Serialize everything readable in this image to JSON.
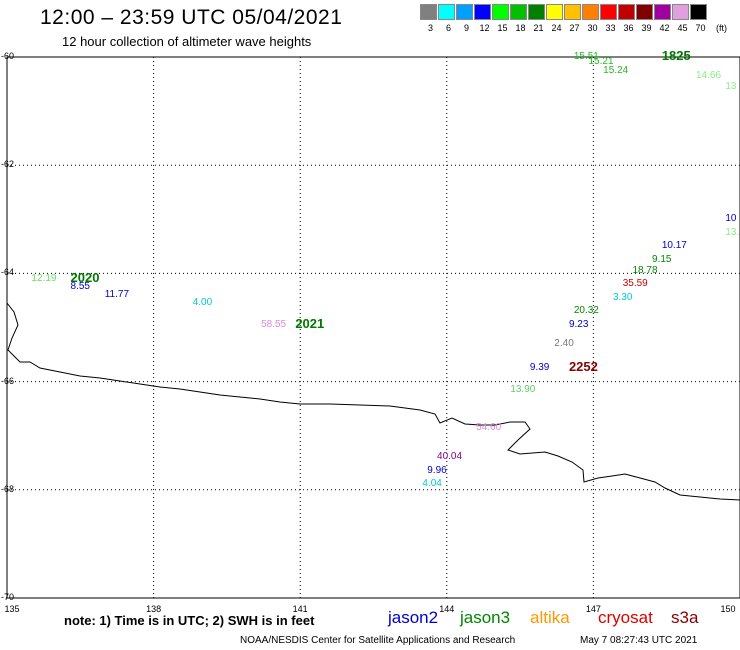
{
  "title": "12:00 – 23:59 UTC 05/04/2021",
  "subtitle": "12 hour collection of altimeter wave heights",
  "scale": {
    "ticks": [
      "3",
      "6",
      "9",
      "12",
      "15",
      "18",
      "21",
      "24",
      "27",
      "30",
      "33",
      "36",
      "39",
      "42",
      "45",
      "70"
    ],
    "unit": "(ft)",
    "colors": [
      "#808080",
      "#00ffff",
      "#00a0ff",
      "#0000ff",
      "#00ff00",
      "#00c000",
      "#008000",
      "#ffff00",
      "#ffc000",
      "#ff8000",
      "#ff0000",
      "#c00000",
      "#800000",
      "#a000a0",
      "#e0a0e0",
      "#000000"
    ]
  },
  "axes": {
    "y_ticks": [
      "-60",
      "-62",
      "-64",
      "-66",
      "-68",
      "-70"
    ],
    "x_ticks": [
      "135",
      "138",
      "141",
      "144",
      "147",
      "150"
    ]
  },
  "note": "note: 1) Time is in UTC; 2) SWH is in feet",
  "legend": [
    {
      "label": "jason2",
      "color": "#0000cc"
    },
    {
      "label": "jason3",
      "color": "#008800"
    },
    {
      "label": "altika",
      "color": "#ff9900"
    },
    {
      "label": "cryosat",
      "color": "#dd0000"
    },
    {
      "label": "s3a",
      "color": "#880000"
    }
  ],
  "credit": "NOAA/NESDIS Center for Satellite Applications and Research",
  "timestamp": "May  7 08:27:43 UTC 2021",
  "observations": [
    {
      "text": "15.51",
      "lon": 146.6,
      "lat": -60.0,
      "color": "#22bb22"
    },
    {
      "text": "1825",
      "lon": 148.4,
      "lat": -60.0,
      "color": "#007700",
      "big": true
    },
    {
      "text": "15.21",
      "lon": 146.9,
      "lat": -60.1,
      "color": "#22bb22"
    },
    {
      "text": "15.24",
      "lon": 147.2,
      "lat": -60.25,
      "color": "#22bb22"
    },
    {
      "text": "14.66",
      "lon": 149.1,
      "lat": -60.35,
      "color": "#88ee88"
    },
    {
      "text": "13",
      "lon": 149.7,
      "lat": -60.55,
      "color": "#88ee88"
    },
    {
      "text": "10",
      "lon": 149.7,
      "lat": -63.0,
      "color": "#0000cc"
    },
    {
      "text": "13.",
      "lon": 149.7,
      "lat": -63.25,
      "color": "#88ee88"
    },
    {
      "text": "10.17",
      "lon": 148.4,
      "lat": -63.5,
      "color": "#0000cc"
    },
    {
      "text": "9.15",
      "lon": 148.2,
      "lat": -63.75,
      "color": "#008800"
    },
    {
      "text": "18.78",
      "lon": 147.8,
      "lat": -63.95,
      "color": "#008800"
    },
    {
      "text": "35.59",
      "lon": 147.6,
      "lat": -64.2,
      "color": "#cc0000"
    },
    {
      "text": "3.30",
      "lon": 147.4,
      "lat": -64.45,
      "color": "#00cccc"
    },
    {
      "text": "20.32",
      "lon": 146.6,
      "lat": -64.7,
      "color": "#008800"
    },
    {
      "text": "9.23",
      "lon": 146.5,
      "lat": -64.95,
      "color": "#0000cc"
    },
    {
      "text": "2.40",
      "lon": 146.2,
      "lat": -65.3,
      "color": "#777777"
    },
    {
      "text": "9.39",
      "lon": 145.7,
      "lat": -65.75,
      "color": "#0000cc"
    },
    {
      "text": "2252",
      "lon": 146.5,
      "lat": -65.75,
      "color": "#880000",
      "big": true
    },
    {
      "text": "13.90",
      "lon": 145.3,
      "lat": -66.15,
      "color": "#66cc66"
    },
    {
      "text": "54.60",
      "lon": 144.6,
      "lat": -66.85,
      "color": "#e088e0"
    },
    {
      "text": "40.04",
      "lon": 143.8,
      "lat": -67.4,
      "color": "#880088"
    },
    {
      "text": "9.96",
      "lon": 143.6,
      "lat": -67.65,
      "color": "#0000cc"
    },
    {
      "text": "4.04",
      "lon": 143.5,
      "lat": -67.9,
      "color": "#00cccc"
    },
    {
      "text": "12.19",
      "lon": 135.5,
      "lat": -64.1,
      "color": "#66dd66"
    },
    {
      "text": "2020",
      "lon": 136.3,
      "lat": -64.1,
      "color": "#007700",
      "big": true
    },
    {
      "text": "8.55",
      "lon": 136.3,
      "lat": -64.25,
      "color": "#0000cc"
    },
    {
      "text": "11.77",
      "lon": 137.0,
      "lat": -64.4,
      "color": "#0000cc"
    },
    {
      "text": "4.00",
      "lon": 138.8,
      "lat": -64.55,
      "color": "#00cccc"
    },
    {
      "text": "58.55",
      "lon": 140.2,
      "lat": -64.95,
      "color": "#e088e0"
    },
    {
      "text": "2021",
      "lon": 140.9,
      "lat": -64.95,
      "color": "#007700",
      "big": true
    }
  ]
}
